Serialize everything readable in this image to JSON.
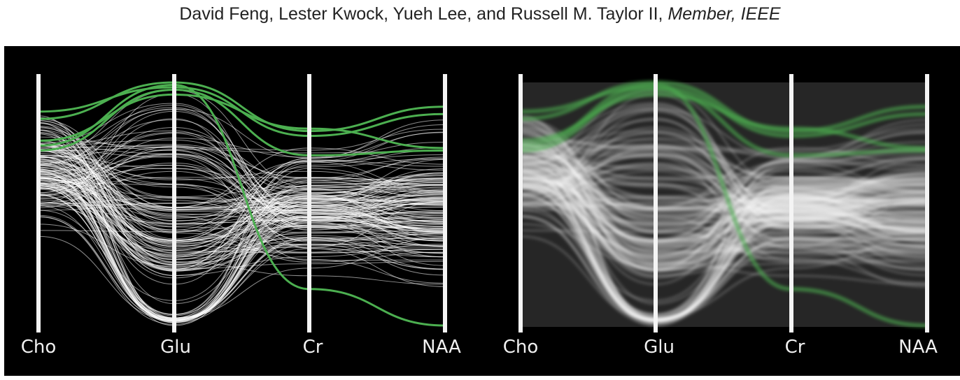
{
  "header": {
    "authors": "David Feng, Lester Kwock, Yueh Lee, and Russell M. Taylor II,",
    "membership": "Member, IEEE"
  },
  "figure": {
    "panels": [
      {
        "id": "left",
        "style": "individual polylines",
        "axes": [
          "Cho",
          "Glu",
          "Cr",
          "NAA"
        ]
      },
      {
        "id": "right",
        "style": "density rendering",
        "axes": [
          "Cho",
          "Glu",
          "Cr",
          "NAA"
        ]
      }
    ],
    "colors": {
      "background": "#000000",
      "context": "#ffffff",
      "focus": "#4caf50"
    }
  },
  "chart_data": {
    "type": "parallel-coordinates",
    "dimensions": [
      "Cho",
      "Glu",
      "Cr",
      "NAA"
    ],
    "highlighted_series_color": "#4caf50",
    "base_series_color": "#ffffff"
  }
}
